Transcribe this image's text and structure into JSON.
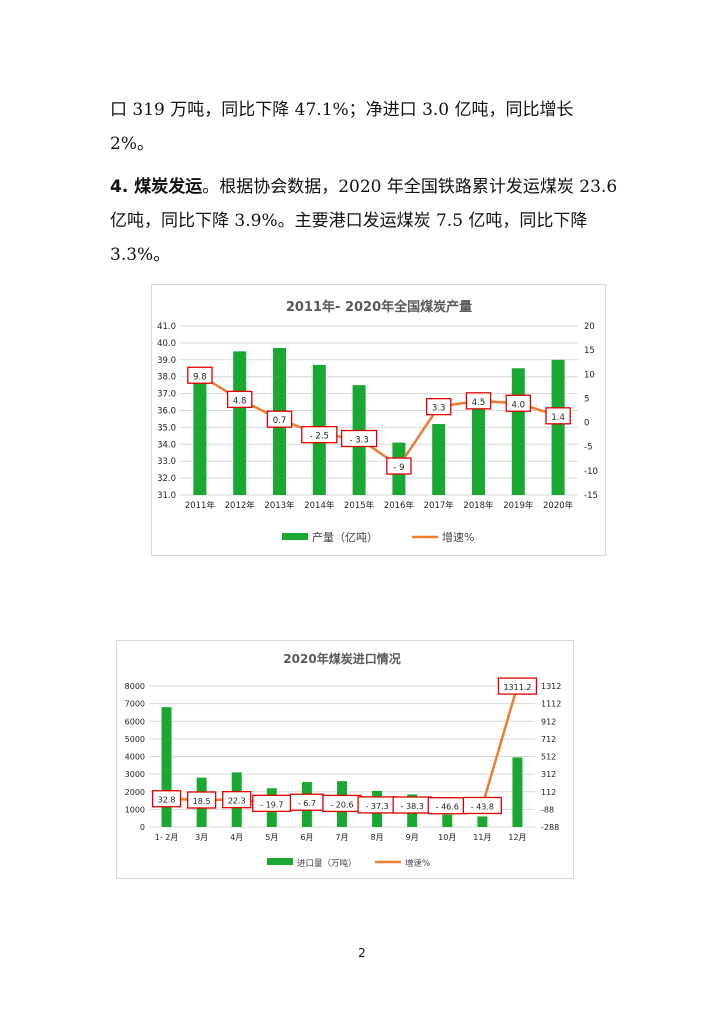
{
  "text": {
    "p1": "口 319 万吨，同比下降 47.1%；净进口 3.0 亿吨，同比增长 2%。",
    "p2_lead": "4. 煤炭发运",
    "p2_body": "。根据协会数据，2020 年全国铁路累计发运煤炭 23.6 亿吨，同比下降 3.9%。主要港口发运煤炭 7.5 亿吨，同比下降 3.3%。"
  },
  "page_number": "2",
  "colors": {
    "bar": "#1aa832",
    "line": "#ed7d31",
    "label_border": "#e00000"
  },
  "chart_data": [
    {
      "type": "bar",
      "title": "2011年- 2020年全国煤炭产量",
      "categories": [
        "2011年",
        "2012年",
        "2013年",
        "2014年",
        "2015年",
        "2016年",
        "2017年",
        "2018年",
        "2019年",
        "2020年"
      ],
      "series": [
        {
          "name": "产量（亿吨）",
          "type": "bar",
          "axis": "left",
          "values": [
            37.8,
            39.5,
            39.7,
            38.7,
            37.5,
            34.1,
            35.2,
            36.8,
            38.5,
            39.0
          ]
        },
        {
          "name": "增速%",
          "type": "line",
          "axis": "right",
          "values": [
            9.8,
            4.8,
            0.7,
            -2.5,
            -3.3,
            -9,
            3.3,
            4.5,
            4.0,
            1.4
          ],
          "labels": [
            "9.8",
            "4.8",
            "0.7",
            "- 2.5",
            "- 3.3",
            "- 9",
            "3.3",
            "4.5",
            "4.0",
            "1.4"
          ]
        }
      ],
      "ylim": [
        31,
        41
      ],
      "yticks": [
        "31.0",
        "32.0",
        "33.0",
        "34.0",
        "35.0",
        "36.0",
        "37.0",
        "38.0",
        "39.0",
        "40.0",
        "41.0"
      ],
      "y2lim": [
        -15,
        20
      ],
      "y2ticks": [
        "-15",
        "-10",
        "-5",
        "0",
        "5",
        "10",
        "15",
        "20"
      ],
      "legend": "bottom"
    },
    {
      "type": "bar",
      "title": "2020年煤炭进口情况",
      "categories": [
        "1- 2月",
        "3月",
        "4月",
        "5月",
        "6月",
        "7月",
        "8月",
        "9月",
        "10月",
        "11月",
        "12月"
      ],
      "series": [
        {
          "name": "进口量（万吨）",
          "type": "bar",
          "axis": "left",
          "values": [
            6800,
            2800,
            3100,
            2200,
            2550,
            2600,
            2050,
            1850,
            700,
            600,
            3950
          ]
        },
        {
          "name": "增速%",
          "type": "line",
          "axis": "right",
          "values": [
            32.8,
            18.5,
            22.3,
            -19.7,
            -6.7,
            -20.6,
            -37.3,
            -38.3,
            -46.6,
            -43.8,
            1311.2
          ],
          "labels": [
            "32.8",
            "18.5",
            "22.3",
            "- 19.7",
            "- 6.7",
            "- 20.6",
            "- 37.3",
            "- 38.3",
            "- 46.6",
            "- 43.8",
            "1311.2"
          ]
        }
      ],
      "ylim": [
        0,
        8000
      ],
      "yticks": [
        "0",
        "1000",
        "2000",
        "3000",
        "4000",
        "5000",
        "6000",
        "7000",
        "8000"
      ],
      "y2lim": [
        -288,
        1312
      ],
      "y2ticks": [
        "-288",
        "-88",
        "112",
        "312",
        "512",
        "712",
        "912",
        "1112",
        "1312"
      ],
      "legend": "bottom"
    }
  ]
}
